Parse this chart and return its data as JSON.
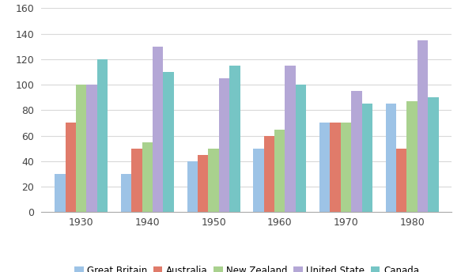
{
  "years": [
    "1930",
    "1940",
    "1950",
    "1960",
    "1970",
    "1980"
  ],
  "series": {
    "Great Britain": [
      30,
      30,
      40,
      50,
      70,
      85
    ],
    "Australia": [
      70,
      50,
      45,
      60,
      70,
      50
    ],
    "New Zealand": [
      100,
      55,
      50,
      65,
      70,
      87
    ],
    "United State": [
      100,
      130,
      105,
      115,
      95,
      135
    ],
    "Canada": [
      120,
      110,
      115,
      100,
      85,
      90
    ]
  },
  "colors": {
    "Great Britain": "#9dc3e6",
    "Australia": "#e07b6a",
    "New Zealand": "#a9d18e",
    "United State": "#b4a7d6",
    "Canada": "#76c5c5"
  },
  "ylim": [
    0,
    160
  ],
  "yticks": [
    0,
    20,
    40,
    60,
    80,
    100,
    120,
    140,
    160
  ],
  "bar_width": 0.16,
  "background_color": "#ffffff"
}
